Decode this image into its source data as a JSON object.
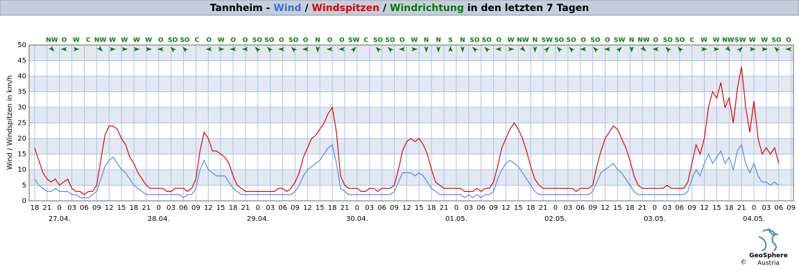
{
  "chart_data": {
    "type": "line",
    "title_parts": [
      {
        "text": "Tannheim - ",
        "color": "#000000"
      },
      {
        "text": "Wind",
        "color": "#3a6fd8"
      },
      {
        "text": " / ",
        "color": "#000000"
      },
      {
        "text": "Windspitzen",
        "color": "#e00000"
      },
      {
        "text": " / ",
        "color": "#000000"
      },
      {
        "text": "Windrichtung",
        "color": "#0a7a0a"
      },
      {
        "text": " in den letzten 7 Tagen",
        "color": "#000000"
      }
    ],
    "y_label": "Wind / Windspitzen in km/h",
    "ylim": [
      0,
      50
    ],
    "yticks": [
      0,
      5,
      10,
      15,
      20,
      25,
      30,
      35,
      40,
      45,
      50
    ],
    "xlim": [
      -1.34,
      183.56
    ],
    "xticks": [
      {
        "value": 0,
        "label": "18"
      },
      {
        "value": 3,
        "label": "21"
      },
      {
        "value": 6,
        "label": "0"
      },
      {
        "value": 9,
        "label": "03"
      },
      {
        "value": 12,
        "label": "06"
      },
      {
        "value": 15,
        "label": "09"
      },
      {
        "value": 18,
        "label": "12"
      },
      {
        "value": 21,
        "label": "15"
      },
      {
        "value": 24,
        "label": "18"
      },
      {
        "value": 27,
        "label": "21"
      },
      {
        "value": 30,
        "label": "0"
      },
      {
        "value": 33,
        "label": "03"
      },
      {
        "value": 36,
        "label": "06"
      },
      {
        "value": 39,
        "label": "09"
      },
      {
        "value": 42,
        "label": "12"
      },
      {
        "value": 45,
        "label": "15"
      },
      {
        "value": 48,
        "label": "18"
      },
      {
        "value": 51,
        "label": "21"
      },
      {
        "value": 54,
        "label": "0"
      },
      {
        "value": 57,
        "label": "03"
      },
      {
        "value": 60,
        "label": "06"
      },
      {
        "value": 63,
        "label": "09"
      },
      {
        "value": 66,
        "label": "12"
      },
      {
        "value": 69,
        "label": "15"
      },
      {
        "value": 72,
        "label": "18"
      },
      {
        "value": 75,
        "label": "21"
      },
      {
        "value": 78,
        "label": "0"
      },
      {
        "value": 81,
        "label": "03"
      },
      {
        "value": 84,
        "label": "06"
      },
      {
        "value": 87,
        "label": "09"
      },
      {
        "value": 90,
        "label": "12"
      },
      {
        "value": 93,
        "label": "15"
      },
      {
        "value": 96,
        "label": "18"
      },
      {
        "value": 99,
        "label": "21"
      },
      {
        "value": 102,
        "label": "0"
      },
      {
        "value": 105,
        "label": "03"
      },
      {
        "value": 108,
        "label": "06"
      },
      {
        "value": 111,
        "label": "09"
      },
      {
        "value": 114,
        "label": "12"
      },
      {
        "value": 117,
        "label": "15"
      },
      {
        "value": 120,
        "label": "18"
      },
      {
        "value": 123,
        "label": "21"
      },
      {
        "value": 126,
        "label": "0"
      },
      {
        "value": 129,
        "label": "03"
      },
      {
        "value": 132,
        "label": "06"
      },
      {
        "value": 135,
        "label": "09"
      },
      {
        "value": 138,
        "label": "12"
      },
      {
        "value": 141,
        "label": "15"
      },
      {
        "value": 144,
        "label": "18"
      },
      {
        "value": 147,
        "label": "21"
      },
      {
        "value": 150,
        "label": "0"
      },
      {
        "value": 153,
        "label": "03"
      },
      {
        "value": 156,
        "label": "06"
      },
      {
        "value": 159,
        "label": "09"
      },
      {
        "value": 162,
        "label": "12"
      },
      {
        "value": 165,
        "label": "15"
      },
      {
        "value": 168,
        "label": "18"
      },
      {
        "value": 171,
        "label": "21"
      },
      {
        "value": 174,
        "label": "0"
      },
      {
        "value": 177,
        "label": "03"
      },
      {
        "value": 180,
        "label": "06"
      },
      {
        "value": 183,
        "label": "09"
      }
    ],
    "date_labels": [
      {
        "value": 6,
        "label": "27.04."
      },
      {
        "value": 30,
        "label": "28.04."
      },
      {
        "value": 54,
        "label": "29.04."
      },
      {
        "value": 78,
        "label": "30.04."
      },
      {
        "value": 102,
        "label": "01.05."
      },
      {
        "value": 126,
        "label": "02.05."
      },
      {
        "value": 150,
        "label": "03.05."
      },
      {
        "value": 174,
        "label": "04.05."
      }
    ],
    "grid": true,
    "directions": [
      "NW",
      "O",
      "W",
      "C",
      "NW",
      "W",
      "W",
      "W",
      "W",
      "O",
      "SO",
      "SO",
      "C",
      "O",
      "W",
      "O",
      "O",
      "SO",
      "SO",
      "O",
      "SO",
      "O",
      "N",
      "O",
      "O",
      "SW",
      "C",
      "SO",
      "SO",
      "O",
      "W",
      "N",
      "N",
      "S",
      "N",
      "SO",
      "SO",
      "O",
      "W",
      "NW",
      "N",
      "SW",
      "SO",
      "SO",
      "O",
      "SO",
      "O",
      "SW",
      "N",
      "NW",
      "O",
      "SO",
      "SO",
      "C",
      "W",
      "W",
      "NW",
      "SW",
      "W",
      "W",
      "SO",
      "O"
    ],
    "direction_color": "#0a7a0a",
    "x": [
      0,
      1,
      2,
      3,
      4,
      5,
      6,
      7,
      8,
      9,
      10,
      11,
      12,
      13,
      14,
      15,
      16,
      17,
      18,
      19,
      20,
      21,
      22,
      23,
      24,
      25,
      26,
      27,
      28,
      29,
      30,
      31,
      32,
      33,
      34,
      35,
      36,
      37,
      38,
      39,
      40,
      41,
      42,
      43,
      44,
      45,
      46,
      47,
      48,
      49,
      50,
      51,
      52,
      53,
      54,
      55,
      56,
      57,
      58,
      59,
      60,
      61,
      62,
      63,
      64,
      65,
      66,
      67,
      68,
      69,
      70,
      71,
      72,
      73,
      74,
      75,
      76,
      77,
      78,
      79,
      80,
      81,
      82,
      83,
      84,
      85,
      86,
      87,
      88,
      89,
      90,
      91,
      92,
      93,
      94,
      95,
      96,
      97,
      98,
      99,
      100,
      101,
      102,
      103,
      104,
      105,
      106,
      107,
      108,
      109,
      110,
      111,
      112,
      113,
      114,
      115,
      116,
      117,
      118,
      119,
      120,
      121,
      122,
      123,
      124,
      125,
      126,
      127,
      128,
      129,
      130,
      131,
      132,
      133,
      134,
      135,
      136,
      137,
      138,
      139,
      140,
      141,
      142,
      143,
      144,
      145,
      146,
      147,
      148,
      149,
      150,
      151,
      152,
      153,
      154,
      155,
      156,
      157,
      158,
      159,
      160,
      161,
      162,
      163,
      164,
      165,
      166,
      167,
      168,
      169,
      170,
      171,
      172,
      173,
      174,
      175,
      176,
      177,
      178,
      179,
      180
    ],
    "series": [
      {
        "name": "Windspitzen",
        "color": "#e00000",
        "values": [
          17,
          13,
          9,
          7,
          6,
          7,
          5,
          6,
          7,
          4,
          3,
          3,
          2,
          3,
          3,
          5,
          13,
          21,
          24,
          24,
          23,
          20,
          18,
          14,
          12,
          9,
          7,
          5,
          4,
          4,
          4,
          4,
          3,
          3,
          4,
          4,
          4,
          3,
          4,
          7,
          16,
          22,
          20,
          16,
          16,
          15,
          14,
          12,
          8,
          5,
          4,
          3,
          3,
          3,
          3,
          3,
          3,
          3,
          3,
          4,
          4,
          3,
          4,
          6,
          9,
          14,
          17,
          20,
          21,
          23,
          25,
          28,
          30,
          22,
          8,
          5,
          4,
          4,
          4,
          3,
          3,
          4,
          4,
          3,
          4,
          4,
          4,
          5,
          10,
          16,
          19,
          20,
          19,
          20,
          18,
          15,
          10,
          6,
          5,
          4,
          4,
          4,
          4,
          4,
          3,
          3,
          3,
          4,
          3,
          4,
          4,
          6,
          11,
          17,
          20,
          23,
          25,
          23,
          20,
          16,
          11,
          7,
          5,
          4,
          4,
          4,
          4,
          4,
          4,
          4,
          4,
          3,
          4,
          4,
          4,
          5,
          11,
          16,
          20,
          22,
          24,
          23,
          20,
          17,
          13,
          8,
          5,
          4,
          4,
          4,
          4,
          4,
          4,
          5,
          4,
          4,
          4,
          4,
          6,
          12,
          18,
          15,
          20,
          30,
          35,
          33,
          38,
          30,
          33,
          25,
          36,
          43,
          30,
          22,
          32,
          20,
          15,
          17,
          15,
          17,
          12
        ]
      },
      {
        "name": "Wind",
        "color": "#5b86e0",
        "values": [
          7,
          5,
          4,
          3,
          3,
          4,
          3,
          3,
          3,
          2,
          2,
          1,
          1,
          1,
          2,
          3,
          7,
          11,
          13,
          14,
          12,
          10,
          9,
          7,
          5,
          4,
          3,
          2,
          2,
          2,
          2,
          2,
          2,
          2,
          2,
          2,
          1,
          2,
          2,
          4,
          10,
          13,
          10,
          9,
          8,
          8,
          8,
          6,
          4,
          3,
          2,
          2,
          2,
          2,
          2,
          2,
          2,
          2,
          2,
          2,
          2,
          2,
          2,
          3,
          5,
          8,
          10,
          11,
          12,
          13,
          15,
          17,
          18,
          12,
          4,
          3,
          2,
          2,
          2,
          2,
          2,
          2,
          2,
          2,
          2,
          2,
          2,
          3,
          6,
          9,
          9,
          9,
          8,
          9,
          8,
          6,
          4,
          3,
          2,
          2,
          2,
          2,
          2,
          2,
          1,
          2,
          1,
          2,
          1,
          2,
          2,
          3,
          7,
          10,
          12,
          13,
          12,
          11,
          9,
          7,
          5,
          3,
          2,
          2,
          2,
          2,
          2,
          2,
          2,
          2,
          2,
          2,
          2,
          2,
          2,
          3,
          6,
          9,
          10,
          11,
          12,
          10,
          9,
          7,
          5,
          3,
          2,
          2,
          2,
          2,
          2,
          2,
          2,
          2,
          2,
          2,
          2,
          2,
          3,
          7,
          10,
          8,
          12,
          15,
          12,
          14,
          16,
          12,
          14,
          10,
          16,
          18,
          12,
          9,
          12,
          8,
          6,
          6,
          5,
          6,
          5
        ]
      }
    ],
    "logo": {
      "name": "GeoSphere",
      "sub": "Austria",
      "copyright": "©"
    }
  }
}
